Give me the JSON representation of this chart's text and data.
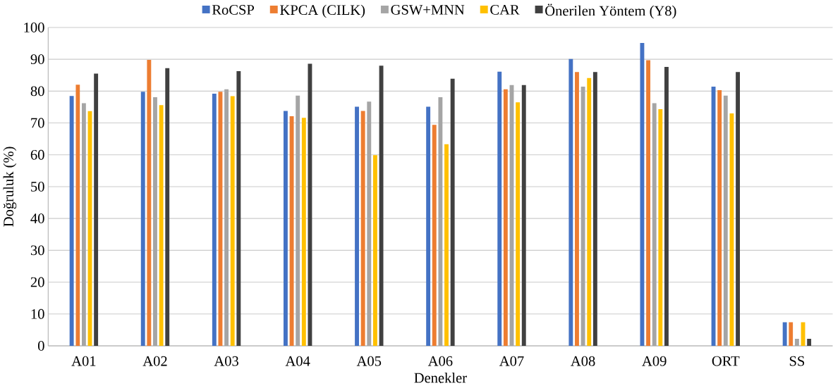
{
  "chart_data": {
    "type": "bar",
    "xlabel": "Denekler",
    "ylabel": "Doğruluk (%)",
    "categories": [
      "A01",
      "A02",
      "A03",
      "A04",
      "A05",
      "A06",
      "A07",
      "A08",
      "A09",
      "ORT",
      "SS"
    ],
    "series": [
      {
        "name": "RoCSP",
        "color": "#4472c4",
        "values": [
          78.5,
          79.8,
          79.2,
          73.8,
          75.1,
          75.1,
          86.1,
          90.1,
          95.1,
          81.4,
          7.4
        ]
      },
      {
        "name": "KPCA (CILK)",
        "color": "#ed7d31",
        "values": [
          82.0,
          89.8,
          79.8,
          72.1,
          73.8,
          69.4,
          80.6,
          86.0,
          89.7,
          80.3,
          7.4
        ]
      },
      {
        "name": "GSW+MNN",
        "color": "#a5a5a5",
        "values": [
          76.2,
          78.1,
          80.6,
          78.6,
          76.7,
          78.1,
          81.9,
          81.4,
          76.2,
          78.6,
          2.2
        ]
      },
      {
        "name": "CAR",
        "color": "#ffc000",
        "values": [
          73.7,
          75.6,
          78.4,
          71.6,
          59.9,
          63.3,
          76.5,
          84.1,
          74.3,
          73.0,
          7.4
        ]
      },
      {
        "name": "Önerilen Yöntem (Y8)",
        "color": "#404040",
        "values": [
          85.5,
          87.2,
          86.3,
          88.6,
          88.0,
          83.9,
          81.9,
          86.0,
          87.6,
          86.0,
          2.2
        ]
      }
    ],
    "ylim": [
      0,
      100
    ],
    "yticks": [
      0,
      10,
      20,
      30,
      40,
      50,
      60,
      70,
      80,
      90,
      100
    ],
    "grid": "y",
    "legend": "top"
  }
}
